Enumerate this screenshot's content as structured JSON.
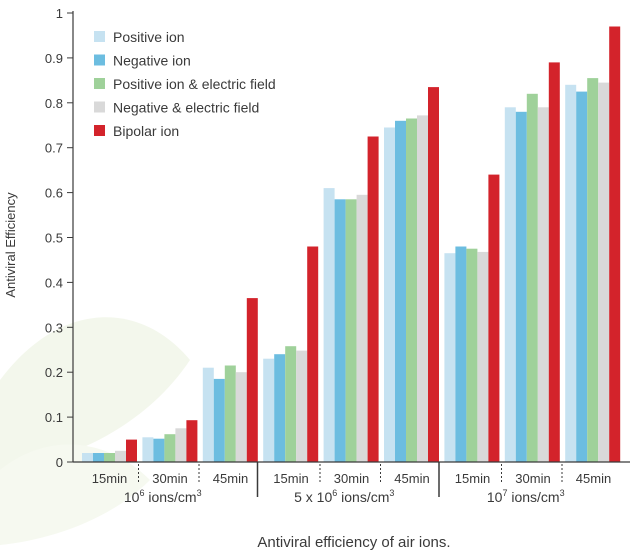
{
  "chart_data": {
    "type": "bar",
    "ylabel": "Antiviral Efficiency",
    "caption": "Antiviral efficiency of air ions.",
    "ylim": [
      0,
      1
    ],
    "yticks": [
      "0",
      "0.1",
      "0.2",
      "0.3",
      "0.4",
      "0.5",
      "0.6",
      "0.7",
      "0.8",
      "0.9",
      "1"
    ],
    "legend_position": "top-left",
    "colors": {
      "positive": "#c6e2f1",
      "negative": "#6cbde0",
      "positive_field": "#9fd19a",
      "negative_field": "#d9d9d9",
      "bipolar": "#d3232b",
      "axis": "#3a3a3a"
    },
    "series": [
      {
        "name": "Positive ion",
        "color_key": "positive",
        "values": [
          0.02,
          0.055,
          0.21,
          0.23,
          0.61,
          0.745,
          0.465,
          0.79,
          0.84
        ]
      },
      {
        "name": "Negative ion",
        "color_key": "negative",
        "values": [
          0.02,
          0.052,
          0.185,
          0.24,
          0.585,
          0.76,
          0.48,
          0.78,
          0.825
        ]
      },
      {
        "name": "Positive ion & electric field",
        "color_key": "positive_field",
        "values": [
          0.02,
          0.062,
          0.215,
          0.258,
          0.585,
          0.765,
          0.475,
          0.82,
          0.855
        ]
      },
      {
        "name": "Negative & electric field",
        "color_key": "negative_field",
        "values": [
          0.025,
          0.075,
          0.2,
          0.248,
          0.595,
          0.772,
          0.468,
          0.79,
          0.845
        ]
      },
      {
        "name": "Bipolar ion",
        "color_key": "bipolar",
        "values": [
          0.05,
          0.093,
          0.365,
          0.48,
          0.725,
          0.835,
          0.64,
          0.89,
          0.97
        ]
      }
    ],
    "categories": [
      "15min",
      "30min",
      "45min",
      "15min",
      "30min",
      "45min",
      "15min",
      "30min",
      "45min"
    ],
    "groups": [
      {
        "base": "10",
        "sup": "6",
        "rest": " ions/cm",
        "unit_sup": "3"
      },
      {
        "base": "5 x 10",
        "sup": "6",
        "rest": " ions/cm",
        "unit_sup": "3"
      },
      {
        "base": "10",
        "sup": "7",
        "rest": " ions/cm",
        "unit_sup": "3"
      }
    ]
  }
}
